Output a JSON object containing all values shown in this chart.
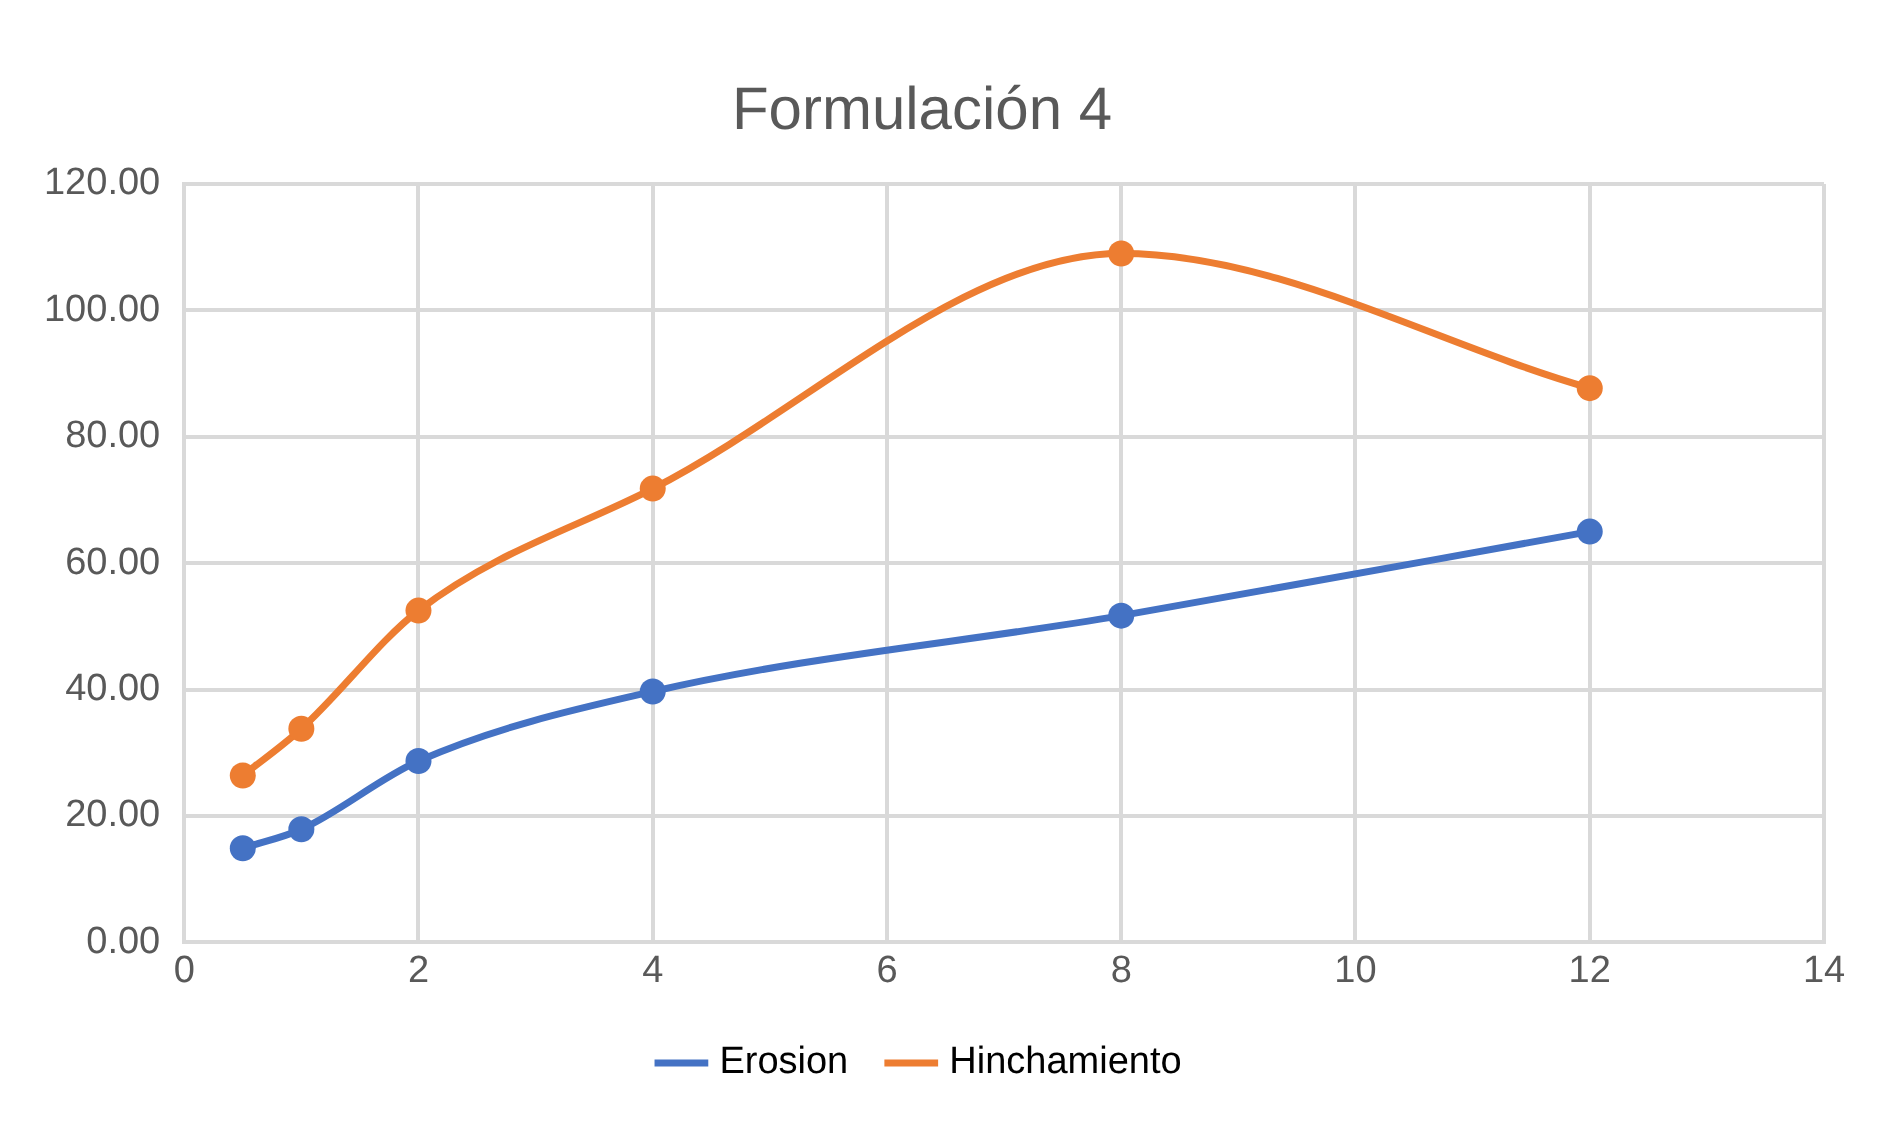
{
  "chart_data": {
    "type": "line",
    "title": "Formulación 4",
    "x": [
      0.5,
      1,
      2,
      4,
      8,
      12
    ],
    "series": [
      {
        "name": "Erosion",
        "color": "#4472c4",
        "values": [
          14.9,
          17.9,
          28.7,
          39.7,
          51.7,
          65.0
        ]
      },
      {
        "name": "Hinchamiento",
        "color": "#ed7d31",
        "values": [
          26.4,
          33.8,
          52.5,
          71.8,
          109.0,
          87.7
        ]
      }
    ],
    "xlim": [
      0,
      14
    ],
    "xticks": [
      0,
      2,
      4,
      6,
      8,
      10,
      12,
      14
    ],
    "ylim": [
      0,
      120
    ],
    "yticks": [
      {
        "value": 0,
        "label": "0.00"
      },
      {
        "value": 20,
        "label": "20.00"
      },
      {
        "value": 40,
        "label": "40.00"
      },
      {
        "value": 60,
        "label": "60.00"
      },
      {
        "value": 80,
        "label": "80.00"
      },
      {
        "value": 100,
        "label": "100.00"
      },
      {
        "value": 120,
        "label": "120.00"
      }
    ],
    "grid": true,
    "legend": "bottom",
    "marker": "circle",
    "line_style": "solid"
  }
}
